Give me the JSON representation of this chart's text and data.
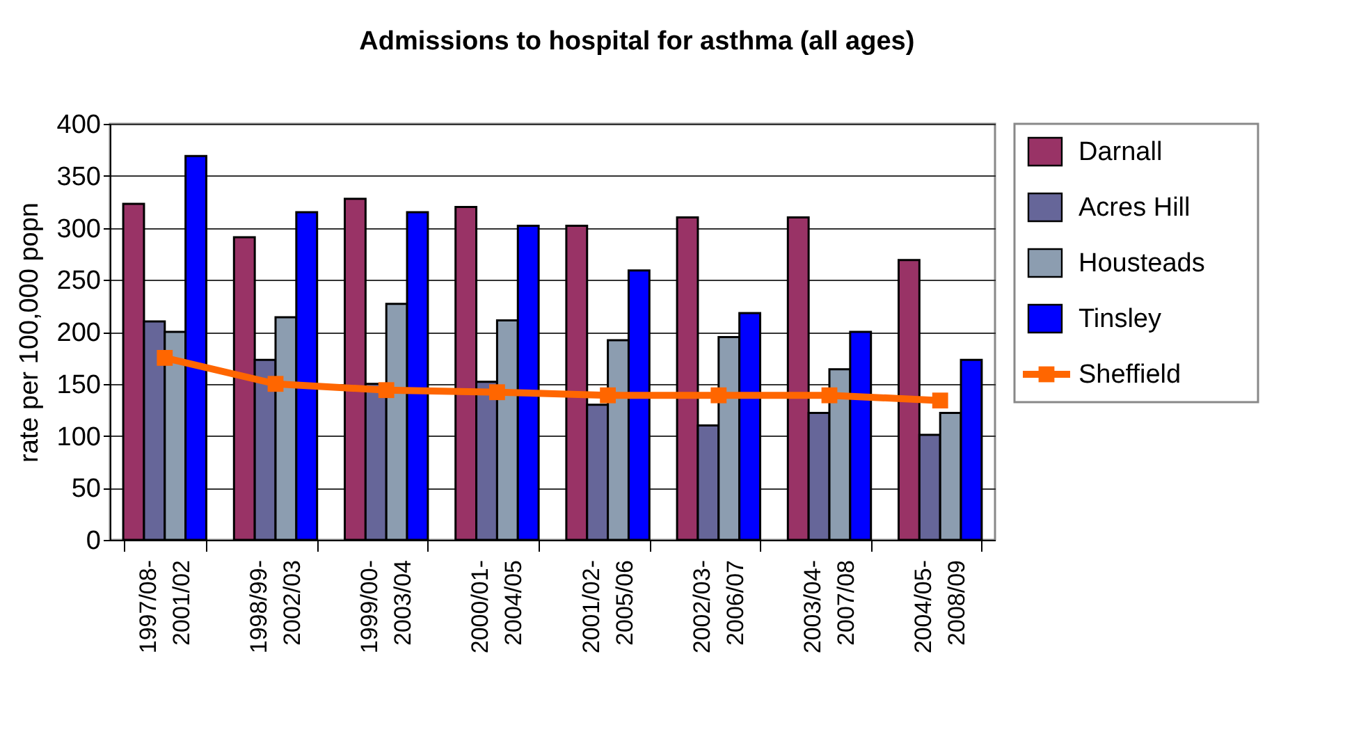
{
  "chart_data": {
    "type": "bar",
    "title": "Admissions to hospital for asthma (all ages)",
    "ylabel": "rate per 100,000 popn",
    "categories": [
      "1997/08- 2001/02",
      "1998/99- 2002/03",
      "1999/00- 2003/04",
      "2000/01- 2004/05",
      "2001/02- 2005/06",
      "2002/03- 2006/07",
      "2003/04- 2007/08",
      "2004/05- 2008/09"
    ],
    "series": [
      {
        "name": "Darnall",
        "color": "#993366",
        "values": [
          323,
          291,
          328,
          320,
          302,
          310,
          310,
          269
        ]
      },
      {
        "name": "Acres Hill",
        "color": "#666699",
        "values": [
          210,
          173,
          150,
          152,
          130,
          110,
          122,
          101
        ]
      },
      {
        "name": "Housteads",
        "color": "#8c9db0",
        "values": [
          200,
          214,
          227,
          211,
          192,
          195,
          164,
          122
        ]
      },
      {
        "name": "Tinsley",
        "color": "#0000ff",
        "values": [
          369,
          315,
          315,
          302,
          259,
          218,
          200,
          173
        ]
      },
      {
        "name": "Sheffield",
        "type": "line",
        "color": "#ff6600",
        "marker": "square",
        "values": [
          175,
          150,
          144,
          142,
          139,
          139,
          139,
          134
        ]
      }
    ],
    "ylim": [
      0,
      400
    ],
    "yticks": [
      0,
      50,
      100,
      150,
      200,
      250,
      300,
      350,
      400
    ],
    "grid": "y",
    "legend": "right"
  }
}
